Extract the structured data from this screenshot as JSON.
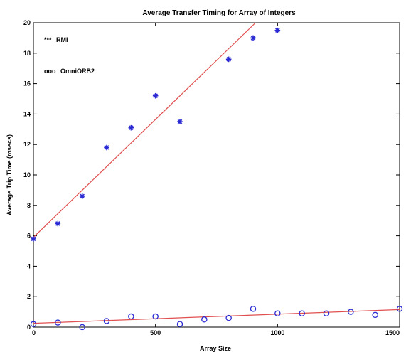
{
  "chart_data": {
    "type": "scatter",
    "title": "Average Transfer Timing for Array of Integers",
    "xlabel": "Array Size",
    "ylabel": "Average Trip Time (msecs)",
    "xlim": [
      0,
      1500
    ],
    "ylim": [
      0,
      20
    ],
    "xticks": [
      0,
      500,
      1000,
      1500
    ],
    "yticks": [
      0,
      2,
      4,
      6,
      8,
      10,
      12,
      14,
      16,
      18,
      20
    ],
    "grid": false,
    "legend": [
      {
        "marker_text": "***",
        "label": "RMI"
      },
      {
        "marker_text": "ooo",
        "label": "OmniORB2"
      }
    ],
    "series": [
      {
        "name": "RMI",
        "marker": "asterisk",
        "color": "#2a2ad4",
        "x": [
          0,
          100,
          200,
          300,
          400,
          500,
          600,
          800,
          900,
          1000
        ],
        "y": [
          5.8,
          6.8,
          8.6,
          11.8,
          13.1,
          15.2,
          13.5,
          17.6,
          19.0,
          19.5
        ],
        "fit": {
          "x": [
            0,
            910
          ],
          "y": [
            5.9,
            20.0
          ],
          "color": "#e05050"
        }
      },
      {
        "name": "OmniORB2",
        "marker": "circle",
        "color": "#2a2ad4",
        "x": [
          0,
          100,
          200,
          300,
          400,
          500,
          600,
          700,
          800,
          900,
          1000,
          1100,
          1200,
          1300,
          1400,
          1500
        ],
        "y": [
          0.2,
          0.3,
          0.0,
          0.4,
          0.7,
          0.7,
          0.2,
          0.5,
          0.6,
          1.2,
          0.9,
          0.9,
          0.9,
          1.0,
          0.8,
          1.2
        ],
        "fit": {
          "x": [
            0,
            1500
          ],
          "y": [
            0.25,
            1.15
          ],
          "color": "#e05050"
        }
      }
    ]
  }
}
